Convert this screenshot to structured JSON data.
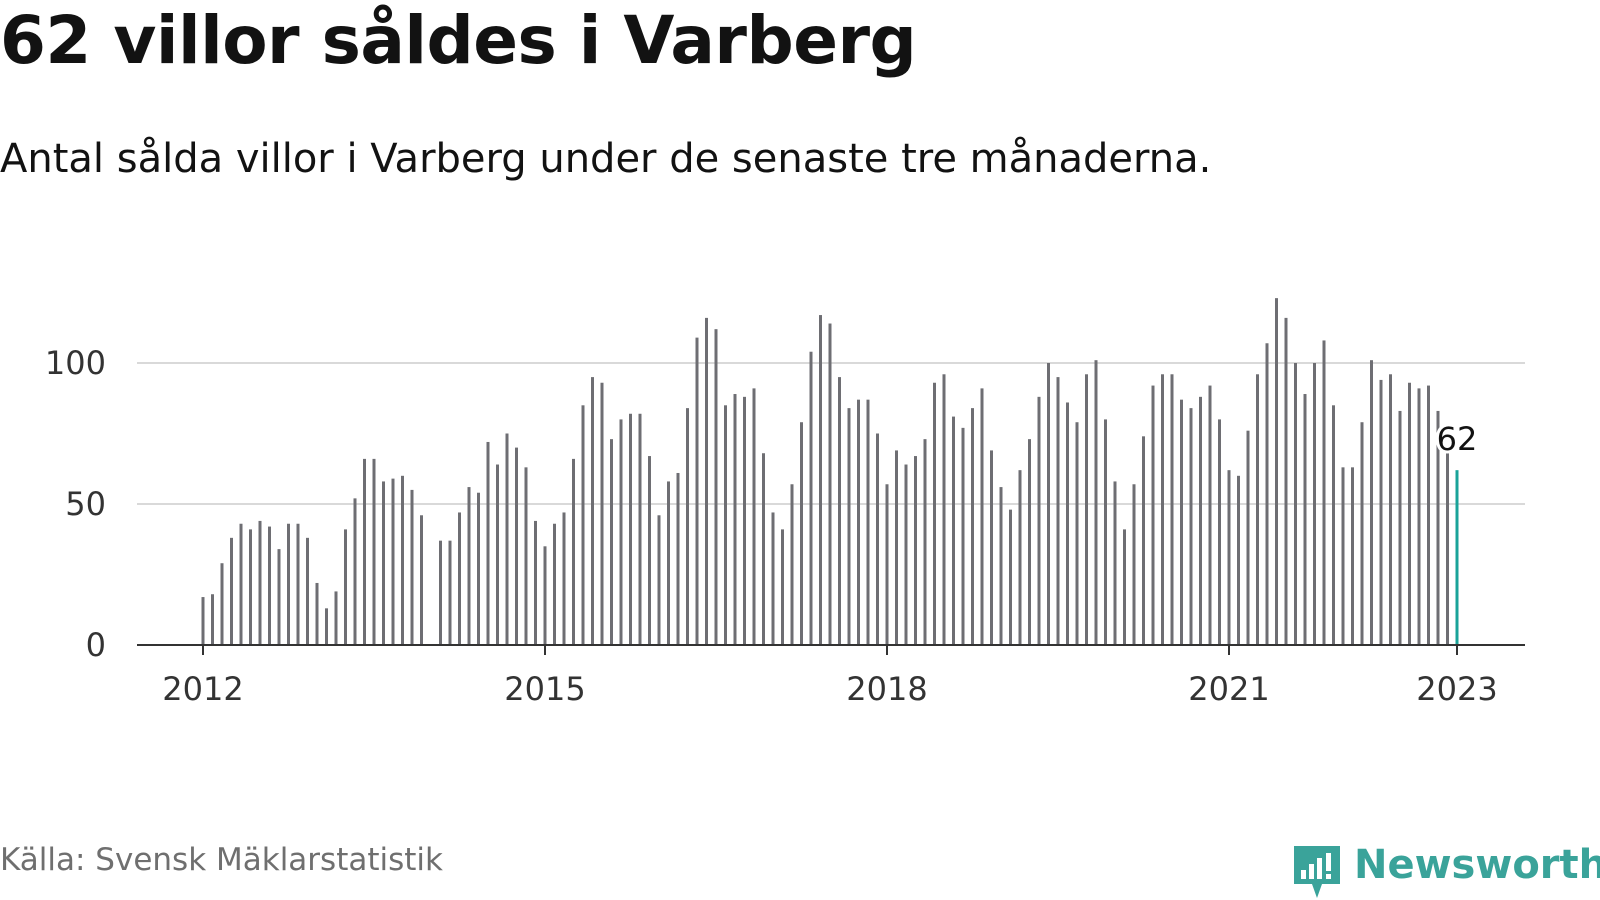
{
  "header": {
    "title": "62 villor såldes i Varberg",
    "subtitle": "Antal sålda villor i Varberg under de senaste tre månaderna."
  },
  "footer": {
    "source": "Källa: Svensk Mäklarstatistik",
    "brand": "Newsworthy"
  },
  "colors": {
    "bar": "#6e6e73",
    "highlight": "#1aa399",
    "grid": "#d9d9d9",
    "axis": "#333333",
    "brand": "#3aa39a"
  },
  "brand_icon": "newsworthy-logo-icon",
  "chart_data": {
    "type": "bar",
    "title": "62 villor såldes i Varberg",
    "subtitle": "Antal sålda villor i Varberg under de senaste tre månaderna.",
    "xlabel": "",
    "ylabel": "",
    "ylim": [
      0,
      125
    ],
    "yticks": [
      0,
      50,
      100
    ],
    "xticks": [
      "2012",
      "2015",
      "2018",
      "2021",
      "2023"
    ],
    "x_start": "2012-01",
    "x_end": "2023-01",
    "grid": true,
    "highlight_last": true,
    "last_value_label": "62",
    "series": [
      {
        "values": [
          17,
          18,
          29,
          38,
          43,
          41,
          44,
          42,
          34,
          43,
          43,
          38,
          22,
          13,
          19,
          41,
          52,
          66,
          66,
          58,
          59,
          60,
          55,
          46,
          0,
          37,
          37,
          47,
          56,
          54,
          72,
          64,
          75,
          70,
          63,
          44,
          35,
          43,
          47,
          66,
          85,
          95,
          93,
          73,
          80,
          82,
          82,
          67,
          46,
          58,
          61,
          84,
          109,
          116,
          112,
          85,
          89,
          88,
          91,
          68,
          47,
          41,
          57,
          79,
          104,
          117,
          114,
          95,
          84,
          87,
          87,
          75,
          57,
          69,
          64,
          67,
          73,
          93,
          96,
          81,
          77,
          84,
          91,
          69,
          56,
          48,
          62,
          73,
          88,
          100,
          95,
          86,
          79,
          96,
          101,
          80,
          58,
          41,
          57,
          74,
          92,
          96,
          96,
          87,
          84,
          88,
          92,
          80,
          62,
          60,
          76,
          96,
          107,
          123,
          116,
          100,
          89,
          100,
          108,
          85,
          63,
          63,
          79,
          101,
          94,
          96,
          83,
          93,
          91,
          92,
          83,
          68,
          62
        ]
      }
    ]
  }
}
